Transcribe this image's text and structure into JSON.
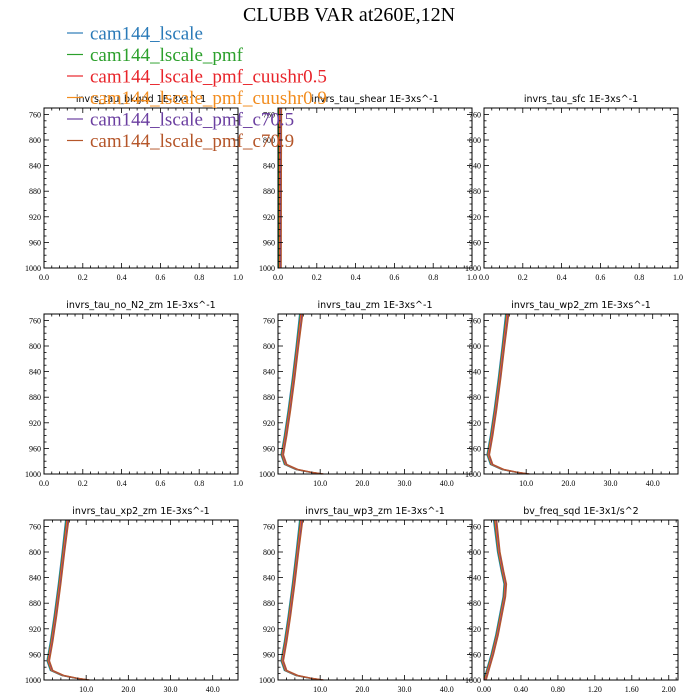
{
  "title": "CLUBB VAR at260E,12N",
  "legend": [
    {
      "name": "cam144_lscale",
      "color": "#2a7ab8"
    },
    {
      "name": "cam144_lscale_pmf",
      "color": "#2ca02c"
    },
    {
      "name": "cam144_lscale_pmf_cuushr0.5",
      "color": "#e8242a"
    },
    {
      "name": "cam144_lscale_pmf_cuushr0.9",
      "color": "#f28c1e"
    },
    {
      "name": "cam144_lscale_pmf_c70.5",
      "color": "#6b3fa0"
    },
    {
      "name": "cam144_lscale_pmf_c70.9",
      "color": "#b5562a"
    }
  ],
  "chart_data": [
    {
      "type": "line",
      "title": "invrs_tau_bkgnd 1E-3xs^-1",
      "xlim": [
        0,
        1
      ],
      "ylim": [
        1000,
        750
      ],
      "y_inverted": true,
      "xticks": [
        0,
        0.2,
        0.4,
        0.6,
        0.8,
        1.0
      ],
      "xtick_labels": [
        "0.0",
        "0.2",
        "0.4",
        "0.6",
        "0.8",
        "1.0"
      ],
      "yticks": [
        760,
        800,
        840,
        880,
        920,
        960,
        1000
      ],
      "ytick_labels": [
        "760",
        "800",
        "840",
        "880",
        "920",
        "960",
        "1000"
      ],
      "series": []
    },
    {
      "type": "line",
      "title": "invrs_tau_shear 1E-3xs^-1",
      "xlim": [
        0,
        1
      ],
      "ylim": [
        1000,
        750
      ],
      "y_inverted": true,
      "xticks": [
        0,
        0.2,
        0.4,
        0.6,
        0.8,
        1.0
      ],
      "xtick_labels": [
        "0.0",
        "0.2",
        "0.4",
        "0.6",
        "0.8",
        "1.0"
      ],
      "yticks": [
        760,
        800,
        840,
        880,
        920,
        960,
        1000
      ],
      "ytick_labels": [
        "760",
        "800",
        "840",
        "880",
        "920",
        "960",
        "1000"
      ],
      "profile": {
        "y": [
          750,
          1000
        ],
        "x": [
          0.01,
          0.01
        ]
      },
      "series": [
        "cam144_lscale",
        "cam144_lscale_pmf",
        "cam144_lscale_pmf_cuushr0.5",
        "cam144_lscale_pmf_cuushr0.9",
        "cam144_lscale_pmf_c70.5",
        "cam144_lscale_pmf_c70.9"
      ]
    },
    {
      "type": "line",
      "title": "invrs_tau_sfc 1E-3xs^-1",
      "xlim": [
        0,
        1
      ],
      "ylim": [
        1000,
        750
      ],
      "y_inverted": true,
      "xticks": [
        0,
        0.2,
        0.4,
        0.6,
        0.8,
        1.0
      ],
      "xtick_labels": [
        "0.0",
        "0.2",
        "0.4",
        "0.6",
        "0.8",
        "1.0"
      ],
      "yticks": [
        760,
        800,
        840,
        880,
        920,
        960,
        1000
      ],
      "ytick_labels": [
        "760",
        "800",
        "840",
        "880",
        "920",
        "960",
        "1000"
      ],
      "series": []
    },
    {
      "type": "line",
      "title": "invrs_tau_no_N2_zm 1E-3xs^-1",
      "xlim": [
        0,
        1
      ],
      "ylim": [
        1000,
        750
      ],
      "y_inverted": true,
      "xticks": [
        0,
        0.2,
        0.4,
        0.6,
        0.8,
        1.0
      ],
      "xtick_labels": [
        "0.0",
        "0.2",
        "0.4",
        "0.6",
        "0.8",
        "1.0"
      ],
      "yticks": [
        760,
        800,
        840,
        880,
        920,
        960,
        1000
      ],
      "ytick_labels": [
        "760",
        "800",
        "840",
        "880",
        "920",
        "960",
        "1000"
      ],
      "series": []
    },
    {
      "type": "line",
      "title": "invrs_tau_zm 1E-3xs^-1",
      "xlim": [
        0,
        46
      ],
      "ylim": [
        1000,
        750
      ],
      "y_inverted": true,
      "xticks": [
        10,
        20,
        30,
        40
      ],
      "xtick_labels": [
        "10.0",
        "20.0",
        "30.0",
        "40.0"
      ],
      "yticks": [
        760,
        800,
        840,
        880,
        920,
        960,
        1000
      ],
      "ytick_labels": [
        "760",
        "800",
        "840",
        "880",
        "920",
        "960",
        "1000"
      ],
      "profile": {
        "y": [
          750,
          800,
          850,
          900,
          940,
          970,
          985,
          993,
          997,
          1000
        ],
        "x": [
          5.5,
          4.6,
          3.7,
          2.7,
          1.8,
          1.0,
          1.8,
          4.5,
          7.5,
          10.5
        ]
      },
      "series": [
        "cam144_lscale",
        "cam144_lscale_pmf",
        "cam144_lscale_pmf_cuushr0.5",
        "cam144_lscale_pmf_cuushr0.9",
        "cam144_lscale_pmf_c70.5",
        "cam144_lscale_pmf_c70.9"
      ]
    },
    {
      "type": "line",
      "title": "invrs_tau_wp2_zm 1E-3xs^-1",
      "xlim": [
        0,
        46
      ],
      "ylim": [
        1000,
        750
      ],
      "y_inverted": true,
      "xticks": [
        10,
        20,
        30,
        40
      ],
      "xtick_labels": [
        "10.0",
        "20.0",
        "30.0",
        "40.0"
      ],
      "yticks": [
        760,
        800,
        840,
        880,
        920,
        960,
        1000
      ],
      "ytick_labels": [
        "760",
        "800",
        "840",
        "880",
        "920",
        "960",
        "1000"
      ],
      "profile": {
        "y": [
          750,
          800,
          850,
          900,
          940,
          970,
          985,
          993,
          997,
          1000
        ],
        "x": [
          5.5,
          4.6,
          3.7,
          2.7,
          1.8,
          1.0,
          1.8,
          4.5,
          7.5,
          10.5
        ]
      },
      "series": [
        "cam144_lscale",
        "cam144_lscale_pmf",
        "cam144_lscale_pmf_cuushr0.5",
        "cam144_lscale_pmf_cuushr0.9",
        "cam144_lscale_pmf_c70.5",
        "cam144_lscale_pmf_c70.9"
      ]
    },
    {
      "type": "line",
      "title": "invrs_tau_xp2_zm 1E-3xs^-1",
      "xlim": [
        0,
        46
      ],
      "ylim": [
        1000,
        750
      ],
      "y_inverted": true,
      "xticks": [
        10,
        20,
        30,
        40
      ],
      "xtick_labels": [
        "10.0",
        "20.0",
        "30.0",
        "40.0"
      ],
      "yticks": [
        760,
        800,
        840,
        880,
        920,
        960,
        1000
      ],
      "ytick_labels": [
        "760",
        "800",
        "840",
        "880",
        "920",
        "960",
        "1000"
      ],
      "profile": {
        "y": [
          750,
          800,
          850,
          900,
          940,
          970,
          985,
          993,
          997,
          1000
        ],
        "x": [
          5.5,
          4.6,
          3.7,
          2.7,
          1.8,
          1.0,
          1.8,
          4.5,
          7.5,
          10.5
        ]
      },
      "series": [
        "cam144_lscale",
        "cam144_lscale_pmf",
        "cam144_lscale_pmf_cuushr0.5",
        "cam144_lscale_pmf_cuushr0.9",
        "cam144_lscale_pmf_c70.5",
        "cam144_lscale_pmf_c70.9"
      ]
    },
    {
      "type": "line",
      "title": "invrs_tau_wp3_zm 1E-3xs^-1",
      "xlim": [
        0,
        46
      ],
      "ylim": [
        1000,
        750
      ],
      "y_inverted": true,
      "xticks": [
        10,
        20,
        30,
        40
      ],
      "xtick_labels": [
        "10.0",
        "20.0",
        "30.0",
        "40.0"
      ],
      "yticks": [
        760,
        800,
        840,
        880,
        920,
        960,
        1000
      ],
      "ytick_labels": [
        "760",
        "800",
        "840",
        "880",
        "920",
        "960",
        "1000"
      ],
      "profile": {
        "y": [
          750,
          800,
          850,
          900,
          940,
          970,
          985,
          993,
          997,
          1000
        ],
        "x": [
          5.5,
          4.6,
          3.7,
          2.7,
          1.8,
          1.0,
          1.8,
          4.5,
          7.5,
          10.5
        ]
      },
      "series": [
        "cam144_lscale",
        "cam144_lscale_pmf",
        "cam144_lscale_pmf_cuushr0.5",
        "cam144_lscale_pmf_cuushr0.9",
        "cam144_lscale_pmf_c70.5",
        "cam144_lscale_pmf_c70.9"
      ]
    },
    {
      "type": "line",
      "title": "bv_freq_sqd 1E-3x1/s^2",
      "xlim": [
        0,
        2.1
      ],
      "ylim": [
        1000,
        750
      ],
      "y_inverted": true,
      "xticks": [
        0,
        0.4,
        0.8,
        1.2,
        1.6,
        2.0
      ],
      "xtick_labels": [
        "0.00",
        "0.40",
        "0.80",
        "1.20",
        "1.60",
        "2.00"
      ],
      "yticks": [
        760,
        800,
        840,
        880,
        920,
        960,
        1000
      ],
      "ytick_labels": [
        "760",
        "800",
        "840",
        "880",
        "920",
        "960",
        "1000"
      ],
      "profile": {
        "y": [
          750,
          800,
          830,
          850,
          870,
          900,
          930,
          960,
          980,
          995,
          1000
        ],
        "x": [
          0.12,
          0.16,
          0.2,
          0.23,
          0.22,
          0.18,
          0.14,
          0.09,
          0.05,
          0.02,
          0.01
        ]
      },
      "series": [
        "cam144_lscale",
        "cam144_lscale_pmf",
        "cam144_lscale_pmf_cuushr0.5",
        "cam144_lscale_pmf_cuushr0.9",
        "cam144_lscale_pmf_c70.5",
        "cam144_lscale_pmf_c70.9"
      ]
    }
  ]
}
